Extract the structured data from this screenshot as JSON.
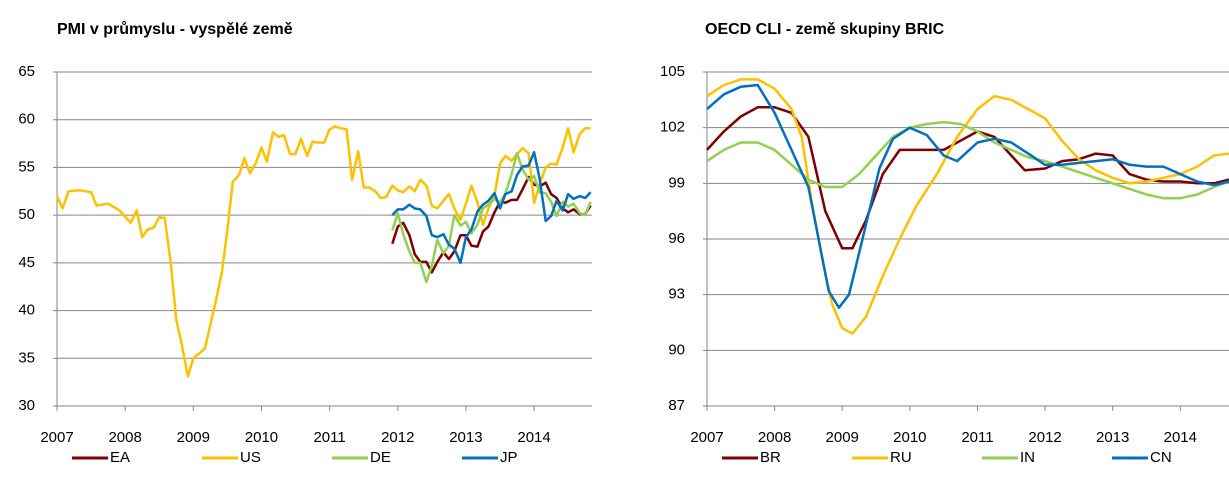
{
  "chart_data": [
    {
      "type": "line",
      "title": "PMI v průmyslu - vyspělé země",
      "xlim": [
        2007,
        2014.85
      ],
      "xticks": [
        2007,
        2008,
        2009,
        2010,
        2011,
        2012,
        2013,
        2014
      ],
      "ylim": [
        30,
        65
      ],
      "yticks": [
        30,
        35,
        40,
        45,
        50,
        55,
        60,
        65
      ],
      "grid": true,
      "series": [
        {
          "name": "EA",
          "color": "#7f0000",
          "x": [
            2011.92,
            2012.0,
            2012.08,
            2012.17,
            2012.25,
            2012.33,
            2012.42,
            2012.5,
            2012.58,
            2012.67,
            2012.75,
            2012.83,
            2012.92,
            2013.0,
            2013.08,
            2013.17,
            2013.25,
            2013.33,
            2013.42,
            2013.5,
            2013.58,
            2013.67,
            2013.75,
            2013.83,
            2013.92,
            2014.0,
            2014.08,
            2014.17,
            2014.25,
            2014.33,
            2014.42,
            2014.5,
            2014.58,
            2014.67,
            2014.75,
            2014.83
          ],
          "values": [
            47,
            48.8,
            49.2,
            47.9,
            45.9,
            45.1,
            45.1,
            44,
            45.1,
            46.1,
            45.4,
            46.2,
            47.9,
            47.9,
            46.8,
            46.7,
            48.3,
            48.8,
            50.3,
            51.4,
            51.3,
            51.6,
            51.6,
            52.7,
            54,
            53.2,
            53,
            53.4,
            52.2,
            51.8,
            50.7,
            50.3,
            50.6,
            50.1,
            50.1,
            51
          ]
        },
        {
          "name": "US",
          "color": "#ffc000",
          "x": [
            2007.0,
            2007.08,
            2007.17,
            2007.33,
            2007.5,
            2007.58,
            2007.75,
            2007.92,
            2008.08,
            2008.17,
            2008.25,
            2008.33,
            2008.42,
            2008.5,
            2008.58,
            2008.67,
            2008.75,
            2008.83,
            2008.92,
            2009.0,
            2009.17,
            2009.33,
            2009.42,
            2009.5,
            2009.58,
            2009.67,
            2009.75,
            2009.83,
            2009.92,
            2010.0,
            2010.08,
            2010.17,
            2010.25,
            2010.33,
            2010.42,
            2010.5,
            2010.58,
            2010.67,
            2010.75,
            2010.83,
            2010.92,
            2011.0,
            2011.08,
            2011.17,
            2011.25,
            2011.33,
            2011.42,
            2011.5,
            2011.58,
            2011.67,
            2011.75,
            2011.83,
            2011.92,
            2012.0,
            2012.08,
            2012.17,
            2012.25,
            2012.33,
            2012.42,
            2012.5,
            2012.58,
            2012.67,
            2012.75,
            2012.83,
            2012.92,
            2013.0,
            2013.08,
            2013.17,
            2013.25,
            2013.33,
            2013.42,
            2013.5,
            2013.58,
            2013.67,
            2013.75,
            2013.83,
            2013.92,
            2014.0,
            2014.08,
            2014.17,
            2014.25,
            2014.33,
            2014.42,
            2014.5,
            2014.58,
            2014.67,
            2014.75,
            2014.83
          ],
          "values": [
            52,
            50.7,
            52.5,
            52.6,
            52.4,
            51,
            51.2,
            50.5,
            49.2,
            50.5,
            47.7,
            48.5,
            48.7,
            49.8,
            49.7,
            45,
            39,
            36.5,
            33.1,
            35,
            36,
            41,
            44,
            48.5,
            53.5,
            54.2,
            56,
            54.4,
            55.5,
            57.1,
            55.6,
            58.7,
            58.2,
            58.4,
            56.4,
            56.4,
            58,
            56.2,
            57.7,
            57.6,
            57.6,
            59,
            59.3,
            59.1,
            59,
            53.7,
            56.7,
            52.9,
            52.9,
            52.5,
            51.8,
            51.9,
            53.1,
            52.6,
            52.4,
            53,
            52.5,
            53.7,
            53.1,
            51,
            50.7,
            51.5,
            52.2,
            50.7,
            49.5,
            51.2,
            53.1,
            51.3,
            49,
            50.7,
            52.1,
            55.4,
            56.2,
            55.7,
            56.4,
            57,
            56.5,
            51.3,
            53.2,
            55,
            55.4,
            55.3,
            57.1,
            59.1,
            56.6,
            58.5,
            59.1,
            59.1
          ]
        },
        {
          "name": "DE",
          "color": "#92d050",
          "x": [
            2011.92,
            2012.0,
            2012.08,
            2012.17,
            2012.25,
            2012.33,
            2012.42,
            2012.5,
            2012.58,
            2012.67,
            2012.75,
            2012.83,
            2012.92,
            2013.0,
            2013.08,
            2013.17,
            2013.25,
            2013.33,
            2013.42,
            2013.5,
            2013.58,
            2013.67,
            2013.75,
            2013.83,
            2013.92,
            2014.0,
            2014.08,
            2014.17,
            2014.25,
            2014.33,
            2014.42,
            2014.5,
            2014.58,
            2014.67,
            2014.75,
            2014.83
          ],
          "values": [
            48.4,
            50.2,
            48,
            46.2,
            45,
            45,
            43,
            44.7,
            47.4,
            46,
            46.8,
            50,
            48.9,
            49.3,
            48.1,
            49,
            50.7,
            51.1,
            51.7,
            51.3,
            52.3,
            54.3,
            56.5,
            54.8,
            53.7,
            54.1,
            52.4,
            52.3,
            51.4,
            49.9,
            51.4,
            50.9,
            51.2,
            50.2,
            50,
            51.4
          ]
        },
        {
          "name": "JP",
          "color": "#0070c0",
          "x": [
            2011.92,
            2012.0,
            2012.08,
            2012.17,
            2012.25,
            2012.33,
            2012.42,
            2012.5,
            2012.58,
            2012.67,
            2012.75,
            2012.83,
            2012.92,
            2013.0,
            2013.08,
            2013.17,
            2013.25,
            2013.33,
            2013.42,
            2013.5,
            2013.58,
            2013.67,
            2013.75,
            2013.83,
            2013.92,
            2014.0,
            2014.08,
            2014.17,
            2014.25,
            2014.33,
            2014.42,
            2014.5,
            2014.58,
            2014.67,
            2014.75,
            2014.83
          ],
          "values": [
            50,
            50.6,
            50.6,
            51.1,
            50.7,
            50.6,
            49.9,
            47.9,
            47.7,
            48,
            46.9,
            46.5,
            45,
            47.7,
            48.5,
            50.4,
            51.1,
            51.5,
            52.3,
            50.7,
            52.2,
            52.5,
            54.2,
            55.1,
            55.2,
            56.6,
            53.9,
            49.4,
            49.9,
            51.5,
            50.5,
            52.2,
            51.7,
            52,
            51.8,
            52.4
          ]
        }
      ]
    },
    {
      "type": "line",
      "title": "OECD CLI - země skupiny BRIC",
      "xlim": [
        2007,
        2014.72
      ],
      "xticks": [
        2007,
        2008,
        2009,
        2010,
        2011,
        2012,
        2013,
        2014
      ],
      "ylim": [
        87,
        105
      ],
      "yticks": [
        87,
        90,
        93,
        96,
        99,
        102,
        105
      ],
      "grid": true,
      "series": [
        {
          "name": "BR",
          "color": "#7f0000",
          "x": [
            2007,
            2007.25,
            2007.5,
            2007.75,
            2008,
            2008.25,
            2008.5,
            2008.75,
            2009.0,
            2009.15,
            2009.35,
            2009.6,
            2009.85,
            2010.25,
            2010.5,
            2010.75,
            2011,
            2011.25,
            2011.5,
            2011.7,
            2012,
            2012.25,
            2012.5,
            2012.75,
            2013,
            2013.25,
            2013.5,
            2013.75,
            2014,
            2014.25,
            2014.5,
            2014.72
          ],
          "values": [
            100.8,
            101.8,
            102.6,
            103.1,
            103.1,
            102.8,
            101.5,
            97.5,
            95.5,
            95.5,
            97,
            99.5,
            100.8,
            100.8,
            100.8,
            101.3,
            101.8,
            101.5,
            100.5,
            99.7,
            99.8,
            100.2,
            100.3,
            100.6,
            100.5,
            99.5,
            99.2,
            99.1,
            99.1,
            99,
            99,
            99.2
          ]
        },
        {
          "name": "RU",
          "color": "#ffc000",
          "x": [
            2007,
            2007.25,
            2007.5,
            2007.75,
            2008,
            2008.25,
            2008.4,
            2008.55,
            2008.7,
            2008.85,
            2009.0,
            2009.15,
            2009.35,
            2009.6,
            2009.85,
            2010.1,
            2010.4,
            2010.7,
            2011.0,
            2011.25,
            2011.5,
            2011.75,
            2012,
            2012.25,
            2012.5,
            2012.75,
            2013,
            2013.25,
            2013.5,
            2013.75,
            2014,
            2014.25,
            2014.5,
            2014.72
          ],
          "values": [
            103.7,
            104.3,
            104.6,
            104.6,
            104.1,
            103,
            101.5,
            98,
            95,
            92.5,
            91.2,
            90.9,
            91.8,
            94,
            96,
            97.8,
            99.5,
            101.5,
            103,
            103.7,
            103.5,
            103,
            102.5,
            101.3,
            100.3,
            99.7,
            99.3,
            99,
            99.1,
            99.3,
            99.5,
            99.9,
            100.5,
            100.6
          ]
        },
        {
          "name": "IN",
          "color": "#92d050",
          "x": [
            2007,
            2007.25,
            2007.5,
            2007.75,
            2008,
            2008.25,
            2008.5,
            2008.75,
            2009,
            2009.25,
            2009.5,
            2009.75,
            2010,
            2010.25,
            2010.5,
            2010.75,
            2011,
            2011.25,
            2011.5,
            2011.75,
            2012,
            2012.25,
            2012.5,
            2012.75,
            2013,
            2013.25,
            2013.5,
            2013.75,
            2014,
            2014.25,
            2014.5,
            2014.72
          ],
          "values": [
            100.2,
            100.8,
            101.2,
            101.2,
            100.8,
            100,
            99.2,
            98.8,
            98.8,
            99.5,
            100.5,
            101.5,
            102,
            102.2,
            102.3,
            102.2,
            101.8,
            101.2,
            100.8,
            100.4,
            100.2,
            99.9,
            99.6,
            99.3,
            99,
            98.7,
            98.4,
            98.2,
            98.2,
            98.4,
            98.8,
            99.1
          ]
        },
        {
          "name": "CN",
          "color": "#0070c0",
          "x": [
            2007,
            2007.25,
            2007.5,
            2007.75,
            2008,
            2008.25,
            2008.5,
            2008.65,
            2008.8,
            2008.95,
            2009.1,
            2009.3,
            2009.55,
            2009.75,
            2010,
            2010.25,
            2010.5,
            2010.7,
            2011,
            2011.25,
            2011.5,
            2011.75,
            2012,
            2012.25,
            2012.5,
            2012.75,
            2013,
            2013.25,
            2013.5,
            2013.75,
            2014,
            2014.25,
            2014.5,
            2014.72
          ],
          "values": [
            103,
            103.8,
            104.2,
            104.3,
            102.8,
            100.8,
            98.8,
            96,
            93.2,
            92.3,
            93,
            96,
            99.8,
            101.4,
            102,
            101.6,
            100.5,
            100.2,
            101.2,
            101.4,
            101.2,
            100.6,
            100,
            100,
            100.1,
            100.2,
            100.3,
            100,
            99.9,
            99.9,
            99.5,
            99.1,
            98.9,
            99.1
          ]
        }
      ]
    }
  ]
}
